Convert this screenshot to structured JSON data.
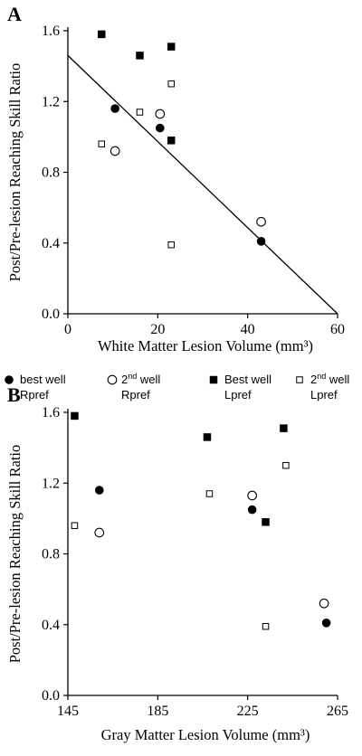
{
  "chart_data": [
    {
      "type": "scatter",
      "panel": "A",
      "xlabel": "White Matter Lesion Volume (mm³)",
      "ylabel": "Post/Pre-lesion Reaching Skill Ratio",
      "xlim": [
        0,
        60
      ],
      "ylim": [
        0.0,
        1.6
      ],
      "xticks": [
        "0",
        "20",
        "40",
        "60"
      ],
      "yticks": [
        "0.0",
        "0.4",
        "0.8",
        "1.2",
        "1.6"
      ],
      "series": [
        {
          "marker": "filled-circle",
          "x": [
            10.5,
            20.5,
            43.0
          ],
          "y": [
            1.16,
            1.05,
            0.41
          ]
        },
        {
          "marker": "open-circle",
          "x": [
            10.5,
            20.5,
            43.0
          ],
          "y": [
            0.92,
            1.13,
            0.52
          ]
        },
        {
          "marker": "filled-square",
          "x": [
            7.5,
            16.0,
            23.0,
            23.0
          ],
          "y": [
            1.58,
            1.46,
            1.51,
            0.98
          ]
        },
        {
          "marker": "open-square",
          "x": [
            7.5,
            16.0,
            23.0,
            23.0
          ],
          "y": [
            0.96,
            1.14,
            1.3,
            0.39
          ]
        }
      ],
      "regression_line": {
        "x": [
          0,
          60
        ],
        "y": [
          1.46,
          0.0
        ]
      }
    },
    {
      "type": "scatter",
      "panel": "B",
      "xlabel": "Gray Matter Lesion Volume (mm³)",
      "ylabel": "Post/Pre-lesion Reaching Skill Ratio",
      "xlim": [
        145,
        265
      ],
      "ylim": [
        0.0,
        1.6
      ],
      "xticks": [
        "145",
        "185",
        "225",
        "265"
      ],
      "yticks": [
        "0.0",
        "0.4",
        "0.8",
        "1.2",
        "1.6"
      ],
      "legend": [
        {
          "marker": "filled-circle",
          "line1": "best well",
          "line2": "Rpref"
        },
        {
          "marker": "open-circle",
          "line1": "2nd well",
          "line2": "Rpref"
        },
        {
          "marker": "filled-square",
          "line1": "Best well",
          "line2": "Lpref"
        },
        {
          "marker": "open-square",
          "line1": "2nd well",
          "line2": "Lpref"
        }
      ],
      "series": [
        {
          "marker": "filled-circle",
          "x": [
            159,
            227,
            260
          ],
          "y": [
            1.16,
            1.05,
            0.41
          ]
        },
        {
          "marker": "open-circle",
          "x": [
            159,
            227,
            259
          ],
          "y": [
            0.92,
            1.13,
            0.52
          ]
        },
        {
          "marker": "filled-square",
          "x": [
            148,
            207,
            233,
            241
          ],
          "y": [
            1.58,
            1.46,
            0.98,
            1.51
          ]
        },
        {
          "marker": "open-square",
          "x": [
            148,
            208,
            233,
            242
          ],
          "y": [
            0.96,
            1.14,
            0.39,
            1.3
          ]
        }
      ]
    }
  ]
}
